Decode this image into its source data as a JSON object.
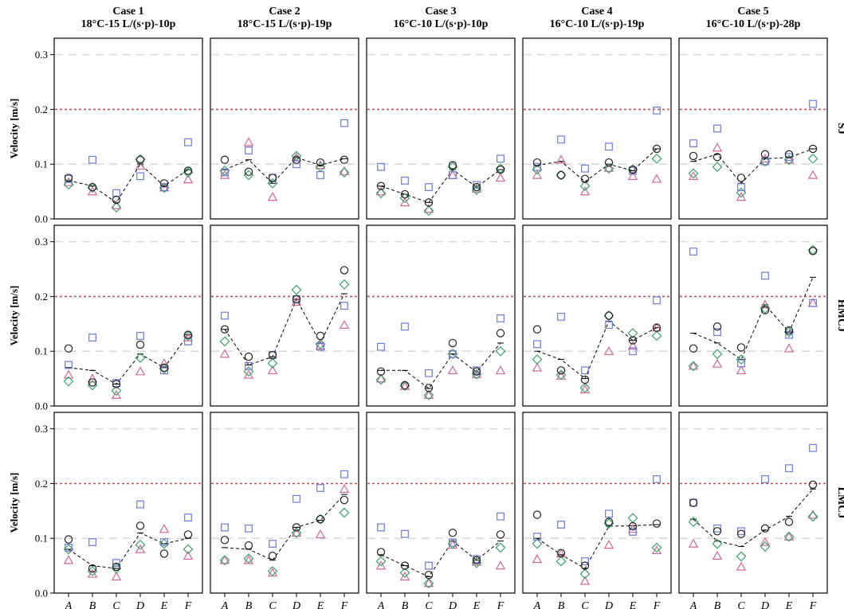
{
  "chart_data": {
    "type": "scatter",
    "figure": "small-multiples grid",
    "ylabel": "Velocity [m/s]",
    "ylim": [
      0,
      0.33
    ],
    "yticks": [
      "0.0",
      "0.1",
      "0.2",
      "0.3"
    ],
    "yticks_values": [
      0,
      0.1,
      0.2,
      0.3
    ],
    "categories": [
      "A",
      "B",
      "C",
      "D",
      "E",
      "F"
    ],
    "reference_lines": [
      {
        "y": 0.2,
        "color": "#e8434b",
        "style": "dotted"
      },
      {
        "y": 0.1,
        "color": "#d9d9d9",
        "style": "dashed"
      },
      {
        "y": 0.3,
        "color": "#d9d9d9",
        "style": "dashed"
      }
    ],
    "grid": false,
    "legend": "none",
    "columns": [
      {
        "title": "Case 1",
        "subtitle": "18°C-15 L/(s·p)-10p"
      },
      {
        "title": "Case 2",
        "subtitle": "18°C-15 L/(s·p)-19p"
      },
      {
        "title": "Case 3",
        "subtitle": "16°C-10 L/(s·p)-10p"
      },
      {
        "title": "Case 4",
        "subtitle": "16°C-10 L/(s·p)-19p"
      },
      {
        "title": "Case 5",
        "subtitle": "16°C-10 L/(s·p)-28p"
      }
    ],
    "rows": [
      {
        "label": "SJ",
        "panels": [
          {
            "circle": [
              0.075,
              0.058,
              0.035,
              0.108,
              0.065,
              0.088
            ],
            "square": [
              0.073,
              0.108,
              0.047,
              0.078,
              0.058,
              0.14
            ],
            "diamond": [
              0.063,
              0.057,
              0.021,
              0.109,
              0.057,
              0.085
            ],
            "triangle": [
              0.067,
              0.05,
              0.025,
              0.097,
              0.057,
              0.072
            ],
            "mean": [
              0.07,
              0.06,
              0.03,
              0.1,
              0.06,
              0.09
            ]
          },
          {
            "circle": [
              0.108,
              0.086,
              0.075,
              0.108,
              0.103,
              0.108
            ],
            "square": [
              0.085,
              0.125,
              0.075,
              0.1,
              0.08,
              0.175
            ],
            "diamond": [
              0.088,
              0.08,
              0.065,
              0.115,
              0.095,
              0.085
            ],
            "triangle": [
              0.08,
              0.14,
              0.04,
              0.112,
              0.098,
              0.087
            ],
            "mean": [
              0.09,
              0.108,
              0.065,
              0.112,
              0.098,
              0.11
            ]
          },
          {
            "circle": [
              0.06,
              0.045,
              0.03,
              0.098,
              0.058,
              0.09
            ],
            "square": [
              0.095,
              0.07,
              0.058,
              0.08,
              0.062,
              0.11
            ],
            "diamond": [
              0.047,
              0.038,
              0.015,
              0.095,
              0.053,
              0.092
            ],
            "triangle": [
              0.05,
              0.03,
              0.018,
              0.08,
              0.055,
              0.075
            ],
            "mean": [
              0.06,
              0.045,
              0.03,
              0.09,
              0.058,
              0.09
            ]
          },
          {
            "circle": [
              0.103,
              0.08,
              0.073,
              0.103,
              0.09,
              0.128
            ],
            "square": [
              0.095,
              0.145,
              0.092,
              0.132,
              0.088,
              0.198
            ],
            "diamond": [
              0.09,
              0.08,
              0.06,
              0.092,
              0.09,
              0.11
            ],
            "triangle": [
              0.08,
              0.108,
              0.05,
              0.093,
              0.078,
              0.073
            ],
            "mean": [
              0.098,
              0.105,
              0.068,
              0.1,
              0.088,
              0.128
            ]
          },
          {
            "circle": [
              0.115,
              0.113,
              0.075,
              0.118,
              0.118,
              0.128
            ],
            "square": [
              0.138,
              0.165,
              0.058,
              0.105,
              0.113,
              0.21
            ],
            "diamond": [
              0.083,
              0.095,
              0.048,
              0.105,
              0.108,
              0.11
            ],
            "triangle": [
              0.078,
              0.13,
              0.04,
              0.11,
              0.108,
              0.08
            ],
            "mean": [
              0.105,
              0.118,
              0.065,
              0.11,
              0.112,
              0.128
            ]
          }
        ]
      },
      {
        "label": "HMCJ",
        "panels": [
          {
            "circle": [
              0.105,
              0.043,
              0.04,
              0.112,
              0.07,
              0.13
            ],
            "square": [
              0.075,
              0.125,
              0.042,
              0.128,
              0.065,
              0.118
            ],
            "diamond": [
              0.045,
              0.038,
              0.028,
              0.088,
              0.068,
              0.128
            ],
            "triangle": [
              0.057,
              0.05,
              0.02,
              0.063,
              0.078,
              0.125
            ],
            "mean": [
              0.07,
              0.065,
              0.04,
              0.095,
              0.07,
              0.13
            ]
          },
          {
            "circle": [
              0.14,
              0.09,
              0.093,
              0.195,
              0.128,
              0.248
            ],
            "square": [
              0.165,
              0.073,
              0.093,
              0.195,
              0.108,
              0.183
            ],
            "diamond": [
              0.118,
              0.063,
              0.078,
              0.212,
              0.113,
              0.222
            ],
            "triangle": [
              0.095,
              0.057,
              0.065,
              0.19,
              0.11,
              0.148
            ],
            "mean": [
              0.14,
              0.075,
              0.09,
              0.195,
              0.115,
              0.205
            ]
          },
          {
            "circle": [
              0.063,
              0.038,
              0.033,
              0.115,
              0.063,
              0.133
            ],
            "square": [
              0.108,
              0.145,
              0.06,
              0.095,
              0.065,
              0.16
            ],
            "diamond": [
              0.048,
              0.037,
              0.02,
              0.095,
              0.058,
              0.1
            ],
            "triangle": [
              0.05,
              0.036,
              0.02,
              0.065,
              0.058,
              0.065
            ],
            "mean": [
              0.065,
              0.065,
              0.032,
              0.095,
              0.062,
              0.115
            ]
          },
          {
            "circle": [
              0.14,
              0.065,
              0.048,
              0.165,
              0.12,
              0.143
            ],
            "square": [
              0.113,
              0.163,
              0.065,
              0.148,
              0.1,
              0.193
            ],
            "diamond": [
              0.085,
              0.057,
              0.033,
              0.165,
              0.133,
              0.128
            ],
            "triangle": [
              0.07,
              0.055,
              0.03,
              0.1,
              0.11,
              0.143
            ],
            "mean": [
              0.1,
              0.085,
              0.05,
              0.155,
              0.12,
              0.143
            ]
          },
          {
            "circle": [
              0.105,
              0.145,
              0.107,
              0.175,
              0.138,
              0.283
            ],
            "square": [
              0.282,
              0.135,
              0.078,
              0.238,
              0.13,
              0.188
            ],
            "diamond": [
              0.073,
              0.095,
              0.085,
              0.178,
              0.135,
              0.285
            ],
            "triangle": [
              0.073,
              0.077,
              0.065,
              0.185,
              0.105,
              0.188
            ],
            "mean": [
              0.133,
              0.115,
              0.085,
              0.185,
              0.135,
              0.235
            ]
          }
        ]
      },
      {
        "label": "LMCJ",
        "panels": [
          {
            "circle": [
              0.098,
              0.045,
              0.048,
              0.123,
              0.072,
              0.107
            ],
            "square": [
              0.083,
              0.093,
              0.055,
              0.162,
              0.093,
              0.138
            ],
            "diamond": [
              0.08,
              0.04,
              0.045,
              0.088,
              0.09,
              0.08
            ],
            "triangle": [
              0.06,
              0.035,
              0.03,
              0.08,
              0.117,
              0.068
            ],
            "mean": [
              0.08,
              0.05,
              0.045,
              0.11,
              0.09,
              0.1
            ]
          },
          {
            "circle": [
              0.097,
              0.087,
              0.068,
              0.12,
              0.135,
              0.17
            ],
            "square": [
              0.12,
              0.118,
              0.09,
              0.172,
              0.192,
              0.217
            ],
            "diamond": [
              0.06,
              0.063,
              0.04,
              0.11,
              0.135,
              0.147
            ],
            "triangle": [
              0.06,
              0.06,
              0.037,
              0.11,
              0.107,
              0.19
            ],
            "mean": [
              0.083,
              0.08,
              0.06,
              0.12,
              0.133,
              0.18
            ]
          },
          {
            "circle": [
              0.075,
              0.05,
              0.033,
              0.11,
              0.06,
              0.107
            ],
            "square": [
              0.12,
              0.108,
              0.05,
              0.092,
              0.062,
              0.14
            ],
            "diamond": [
              0.058,
              0.037,
              0.018,
              0.09,
              0.055,
              0.083
            ],
            "triangle": [
              0.05,
              0.03,
              0.018,
              0.088,
              0.057,
              0.05
            ],
            "mean": [
              0.07,
              0.05,
              0.03,
              0.095,
              0.06,
              0.095
            ]
          },
          {
            "circle": [
              0.143,
              0.073,
              0.05,
              0.13,
              0.122,
              0.127
            ],
            "square": [
              0.103,
              0.125,
              0.058,
              0.145,
              0.112,
              0.208
            ],
            "diamond": [
              0.09,
              0.058,
              0.035,
              0.127,
              0.137,
              0.083
            ],
            "triangle": [
              0.062,
              0.072,
              0.022,
              0.088,
              0.117,
              0.078
            ],
            "mean": [
              0.1,
              0.07,
              0.045,
              0.122,
              0.123,
              0.125
            ]
          },
          {
            "circle": [
              0.165,
              0.113,
              0.108,
              0.118,
              0.13,
              0.198
            ],
            "square": [
              0.165,
              0.118,
              0.113,
              0.208,
              0.228,
              0.265
            ],
            "diamond": [
              0.13,
              0.09,
              0.067,
              0.085,
              0.103,
              0.14
            ],
            "triangle": [
              0.09,
              0.068,
              0.048,
              0.093,
              0.103,
              0.143
            ],
            "mean": [
              0.135,
              0.095,
              0.085,
              0.115,
              0.14,
              0.19
            ]
          }
        ]
      }
    ],
    "marker_colors": {
      "circle": "#222222",
      "square": "#6f7ad4",
      "diamond": "#3fa16b",
      "triangle": "#d1679b",
      "mean": "#000000"
    }
  }
}
